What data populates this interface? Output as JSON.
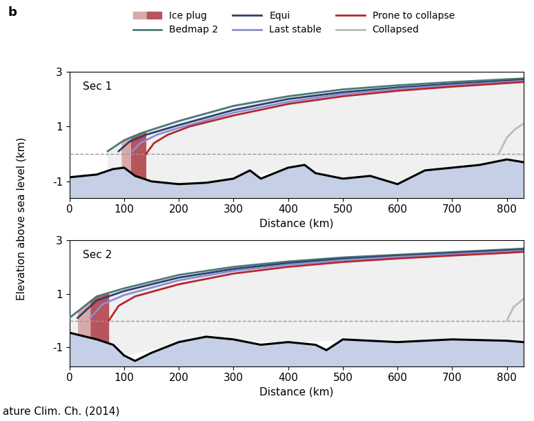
{
  "panel_label": "b",
  "caption": "ature Clim. Ch. (2014)",
  "ylabel": "Elevation above sea level (km)",
  "legend": "upper center",
  "chart_data": [
    {
      "type": "line",
      "title": "Sec 1",
      "xlabel": "Distance (km)",
      "xlim": [
        0,
        830
      ],
      "xticks": [
        0,
        100,
        200,
        300,
        400,
        500,
        600,
        700,
        800
      ],
      "ylim": [
        -1.6,
        3
      ],
      "yticks": [
        -1,
        1,
        3
      ],
      "sea_level": 0,
      "bed": {
        "color": "#c5cfe6",
        "x": [
          0,
          50,
          80,
          100,
          120,
          150,
          200,
          250,
          300,
          330,
          350,
          400,
          430,
          450,
          500,
          550,
          600,
          620,
          650,
          700,
          750,
          800,
          830
        ],
        "values": [
          -0.85,
          -0.75,
          -0.55,
          -0.5,
          -0.8,
          -1.0,
          -1.1,
          -1.05,
          -0.9,
          -0.6,
          -0.9,
          -0.5,
          -0.4,
          -0.7,
          -0.9,
          -0.8,
          -1.1,
          -0.9,
          -0.6,
          -0.5,
          -0.4,
          -0.2,
          -0.3
        ]
      },
      "ice_plug": {
        "name": "Ice plug",
        "colors": [
          "#d9a9a9",
          "#b8545c"
        ],
        "x": [
          [
            95,
            112
          ],
          [
            112,
            140
          ]
        ]
      },
      "series": [
        {
          "name": "Bedmap 2",
          "color": "#4a7a78",
          "line_style": "solid",
          "x": [
            70,
            100,
            130,
            200,
            300,
            400,
            500,
            600,
            700,
            800,
            830
          ],
          "values": [
            0.1,
            0.5,
            0.75,
            1.2,
            1.75,
            2.1,
            2.35,
            2.5,
            2.62,
            2.72,
            2.75
          ]
        },
        {
          "name": "Equi",
          "color": "#2d3f6e",
          "line_style": "solid",
          "x": [
            90,
            110,
            140,
            200,
            300,
            400,
            500,
            600,
            700,
            800,
            830
          ],
          "values": [
            0.1,
            0.45,
            0.7,
            1.05,
            1.6,
            2.0,
            2.25,
            2.42,
            2.55,
            2.66,
            2.7
          ]
        },
        {
          "name": "Last stable",
          "color": "#8a8fd0",
          "line_style": "solid",
          "x": [
            115,
            130,
            160,
            200,
            300,
            400,
            500,
            600,
            700,
            800,
            830
          ],
          "values": [
            0.1,
            0.4,
            0.7,
            0.95,
            1.5,
            1.9,
            2.18,
            2.37,
            2.5,
            2.62,
            2.66
          ]
        },
        {
          "name": "Prone to collapse",
          "color": "#b5272d",
          "line_style": "solid",
          "x": [
            140,
            155,
            180,
            220,
            300,
            400,
            500,
            600,
            700,
            800,
            830
          ],
          "values": [
            0.0,
            0.4,
            0.7,
            1.0,
            1.4,
            1.82,
            2.1,
            2.3,
            2.45,
            2.58,
            2.62
          ]
        },
        {
          "name": "Collapsed",
          "color": "#bbbbbb",
          "line_style": "solid",
          "x": [
            785,
            800,
            815,
            830
          ],
          "values": [
            0.0,
            0.6,
            0.9,
            1.1
          ]
        }
      ]
    },
    {
      "type": "line",
      "title": "Sec 2",
      "xlabel": "Distance (km)",
      "xlim": [
        0,
        830
      ],
      "xticks": [
        0,
        100,
        200,
        300,
        400,
        500,
        600,
        700,
        800
      ],
      "ylim": [
        -1.7,
        3
      ],
      "yticks": [
        -1,
        1,
        3
      ],
      "sea_level": 0,
      "bed": {
        "color": "#c5cfe6",
        "x": [
          0,
          50,
          80,
          100,
          120,
          150,
          200,
          250,
          300,
          350,
          400,
          450,
          470,
          500,
          600,
          700,
          800,
          830
        ],
        "values": [
          -0.45,
          -0.7,
          -0.9,
          -1.3,
          -1.5,
          -1.2,
          -0.8,
          -0.6,
          -0.7,
          -0.9,
          -0.8,
          -0.9,
          -1.1,
          -0.7,
          -0.8,
          -0.7,
          -0.75,
          -0.8
        ]
      },
      "ice_plug": {
        "name": "Ice plug",
        "colors": [
          "#d9a9a9",
          "#b8545c"
        ],
        "x": [
          [
            15,
            38
          ],
          [
            38,
            72
          ]
        ]
      },
      "series": [
        {
          "name": "Bedmap 2",
          "color": "#4a7a78",
          "line_style": "solid",
          "x": [
            0,
            50,
            100,
            200,
            300,
            400,
            500,
            600,
            700,
            800,
            830
          ],
          "values": [
            0.1,
            0.9,
            1.2,
            1.7,
            2.0,
            2.2,
            2.35,
            2.45,
            2.55,
            2.65,
            2.68
          ]
        },
        {
          "name": "Equi",
          "color": "#2d3f6e",
          "line_style": "solid",
          "x": [
            15,
            50,
            100,
            200,
            300,
            400,
            500,
            600,
            700,
            800,
            830
          ],
          "values": [
            0.1,
            0.75,
            1.1,
            1.6,
            1.92,
            2.14,
            2.3,
            2.41,
            2.51,
            2.61,
            2.64
          ]
        },
        {
          "name": "Last stable",
          "color": "#8a8fd0",
          "line_style": "solid",
          "x": [
            38,
            60,
            100,
            200,
            300,
            400,
            500,
            600,
            700,
            800,
            830
          ],
          "values": [
            0.1,
            0.6,
            0.95,
            1.5,
            1.85,
            2.08,
            2.25,
            2.37,
            2.47,
            2.57,
            2.6
          ]
        },
        {
          "name": "Prone to collapse",
          "color": "#b5272d",
          "line_style": "solid",
          "x": [
            72,
            90,
            120,
            200,
            300,
            400,
            500,
            600,
            700,
            800,
            830
          ],
          "values": [
            0.0,
            0.55,
            0.9,
            1.35,
            1.75,
            2.0,
            2.18,
            2.31,
            2.42,
            2.52,
            2.56
          ]
        },
        {
          "name": "Collapsed",
          "color": "#bbbbbb",
          "line_style": "solid",
          "x": [
            800,
            812,
            830
          ],
          "values": [
            0.0,
            0.5,
            0.8
          ]
        }
      ]
    }
  ]
}
